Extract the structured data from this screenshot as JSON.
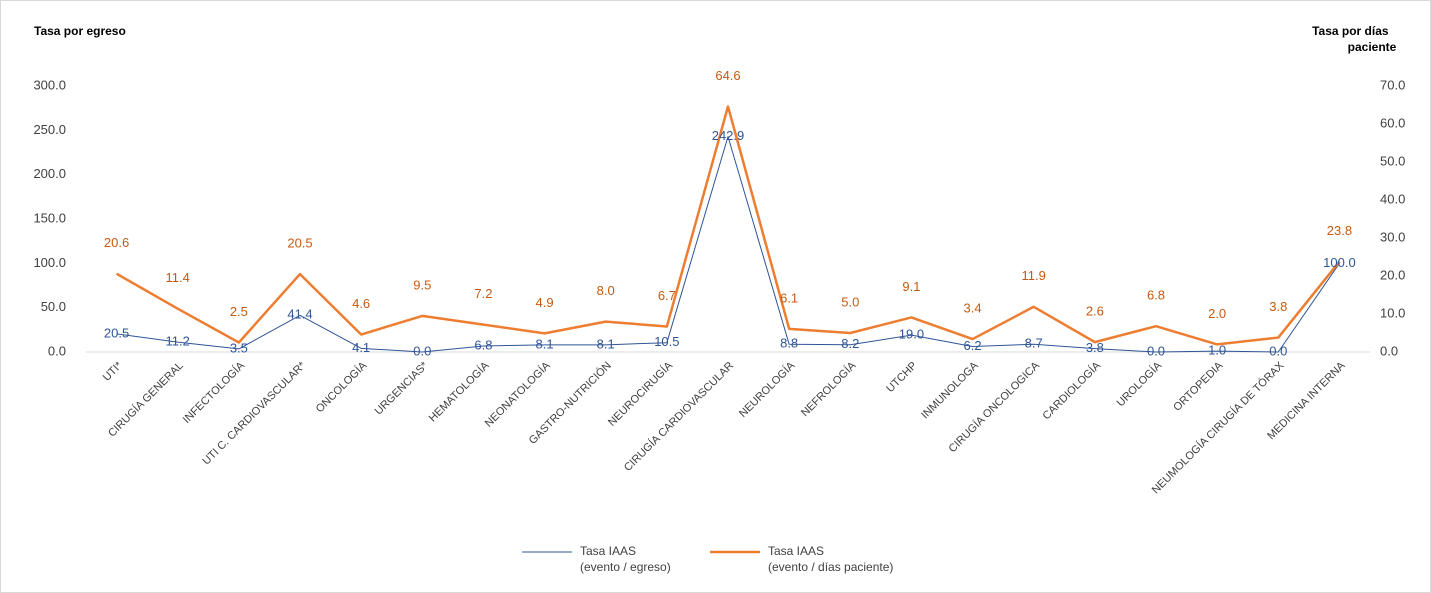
{
  "chart_data": {
    "type": "line",
    "y_label": "Tasa por egreso",
    "y2_label": "Tasa por días paciente",
    "categories": [
      "UTI*",
      "CIRUGÍA GENERAL",
      "INFECTOLOGÍA",
      "UTI  C. CARDIOVASCULAR*",
      "ONCOLOGÍA",
      "URGENCIAS*",
      "HEMATOLOGÍA",
      "NEONATOLOGÍA",
      "GASTRO-NUTRICIÓN",
      "NEUROCIRUGÍA",
      "CIRUGÍA CARDIOVASCULAR",
      "NEUROLOGÍA",
      "NEFROLOGÍA",
      "UTCHP",
      "INMUNOLOGA",
      "CIRUGÍA ONCOLOGICA",
      "CARDIOLOGÍA",
      "UROLOGÍA",
      "ORTOPEDIA",
      "NEUMOLOGÍA CIRUGÍA DE TÓRAX",
      "MEDICINA INTERNA"
    ],
    "series": [
      {
        "name": "Tasa IAAS (evento / egreso)",
        "color": "#2f5597",
        "axis": "y",
        "values": [
          20.5,
          11.2,
          3.5,
          41.4,
          4.1,
          0.0,
          6.8,
          8.1,
          8.1,
          10.5,
          242.9,
          8.8,
          8.2,
          19.0,
          6.2,
          8.7,
          3.8,
          0.0,
          1.0,
          0.0,
          100.0
        ],
        "value_labels": [
          "20.5",
          "11.2",
          "3.5",
          "41.4",
          "4.1",
          "0.0",
          "6.8",
          "8.1",
          "8.1",
          "10.5",
          "242.9",
          "8.8",
          "8.2",
          "19.0",
          "6.2",
          "8.7",
          "3.8",
          "0.0",
          "1.0",
          "0.0",
          "100.0"
        ]
      },
      {
        "name": "Tasa IAAS (evento / días paciente)",
        "color": "#ed7d31",
        "axis": "y2",
        "values": [
          20.6,
          11.4,
          2.5,
          20.5,
          4.6,
          9.5,
          7.2,
          4.9,
          8.0,
          6.7,
          64.6,
          6.1,
          5.0,
          9.1,
          3.4,
          11.9,
          2.6,
          6.8,
          2.0,
          3.8,
          23.8
        ],
        "value_labels": [
          "20.6",
          "11.4",
          "2.5",
          "20.5",
          "4.6",
          "9.5",
          "7.2",
          "4.9",
          "8.0",
          "6.7",
          "64.6",
          "6.1",
          "5.0",
          "9.1",
          "3.4",
          "11.9",
          "2.6",
          "6.8",
          "2.0",
          "3.8",
          "23.8"
        ]
      }
    ],
    "ylim": [
      0,
      300
    ],
    "yticks": [
      {
        "value": 0,
        "label": "0.0"
      },
      {
        "value": 50,
        "label": "50.0"
      },
      {
        "value": 100,
        "label": "100.0"
      },
      {
        "value": 150,
        "label": "150.0"
      },
      {
        "value": 200,
        "label": "200.0"
      },
      {
        "value": 250,
        "label": "250.0"
      },
      {
        "value": 300,
        "label": "300.0"
      }
    ],
    "y2lim": [
      0,
      70
    ],
    "y2ticks": [
      {
        "value": 0,
        "label": "0.0"
      },
      {
        "value": 10,
        "label": "10.0"
      },
      {
        "value": 20,
        "label": "20.0"
      },
      {
        "value": 30,
        "label": "30.0"
      },
      {
        "value": 40,
        "label": "40.0"
      },
      {
        "value": 50,
        "label": "50.0"
      },
      {
        "value": 60,
        "label": "60.0"
      },
      {
        "value": 70,
        "label": "70.0"
      }
    ]
  }
}
